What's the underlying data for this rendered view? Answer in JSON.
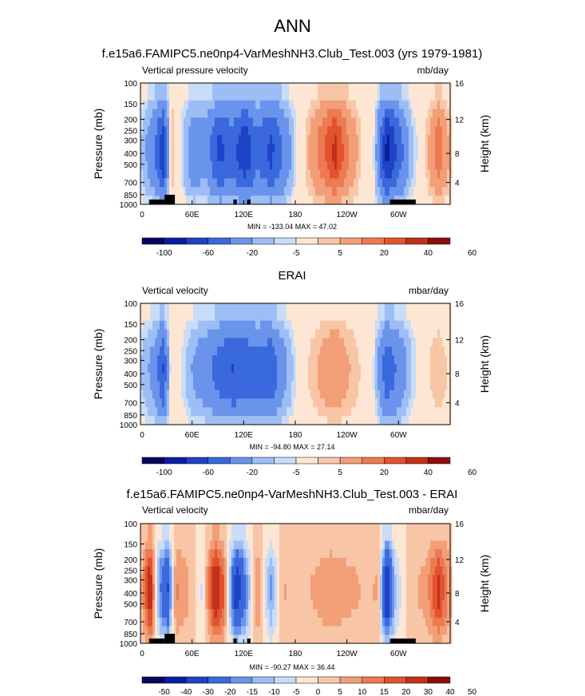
{
  "page": {
    "title": "ANN"
  },
  "colors": {
    "palette": [
      "#08055e",
      "#0a1fa0",
      "#1f43c7",
      "#3a68dd",
      "#6a94ec",
      "#9dbef4",
      "#c9dcf8",
      "#fde6d3",
      "#f8c6a6",
      "#f29f78",
      "#ec7a52",
      "#e2532d",
      "#c1311a",
      "#8a1009"
    ],
    "land": "#000000"
  },
  "chart_data": [
    {
      "type": "heatmap",
      "title": "f.e15a6.FAMIPC5.ne0np4-VarMeshNH3.Club_Test.003 (yrs 1979-1981)",
      "left_label": "Vertical pressure velocity",
      "right_label": "mb/day",
      "ylabel": "Pressure (mb)",
      "ylabel_right": "Height (km)",
      "x_ticks": [
        "0",
        "60E",
        "120E",
        "180",
        "120W",
        "60W"
      ],
      "y_ticks": [
        "100",
        "150",
        "200",
        "250",
        "300",
        "400",
        "500",
        "700",
        "850",
        "1000"
      ],
      "y_ticks_right": [
        "16",
        "12",
        "8",
        "4"
      ],
      "minmax": "MIN = -133.04  MAX =  47.02",
      "colorbar_labels": [
        "-100",
        "-60",
        "-20",
        "-5",
        "5",
        "20",
        "40",
        "60"
      ],
      "field": [
        {
          "lon": 0,
          "val": -10
        },
        {
          "lon": 15,
          "val": -35
        },
        {
          "lon": 25,
          "val": -70
        },
        {
          "lon": 35,
          "val": 10
        },
        {
          "lon": 45,
          "val": -5
        },
        {
          "lon": 60,
          "val": -30
        },
        {
          "lon": 75,
          "val": -25
        },
        {
          "lon": 90,
          "val": -60
        },
        {
          "lon": 105,
          "val": -45
        },
        {
          "lon": 120,
          "val": -70
        },
        {
          "lon": 135,
          "val": -40
        },
        {
          "lon": 150,
          "val": -60
        },
        {
          "lon": 165,
          "val": -35
        },
        {
          "lon": 180,
          "val": -5
        },
        {
          "lon": 195,
          "val": 10
        },
        {
          "lon": 210,
          "val": 25
        },
        {
          "lon": 225,
          "val": 40
        },
        {
          "lon": 240,
          "val": 20
        },
        {
          "lon": 255,
          "val": 5
        },
        {
          "lon": 270,
          "val": -5
        },
        {
          "lon": 285,
          "val": -80
        },
        {
          "lon": 300,
          "val": -45
        },
        {
          "lon": 315,
          "val": -10
        },
        {
          "lon": 330,
          "val": 5
        },
        {
          "lon": 345,
          "val": 25
        },
        {
          "lon": 360,
          "val": 5
        }
      ]
    },
    {
      "type": "heatmap",
      "title": "ERAI",
      "left_label": "Vertical velocity",
      "right_label": "mbar/day",
      "ylabel": "Pressure (mb)",
      "ylabel_right": "Height (km)",
      "x_ticks": [
        "0",
        "60E",
        "120E",
        "180",
        "120W",
        "60W"
      ],
      "y_ticks": [
        "100",
        "150",
        "200",
        "250",
        "300",
        "400",
        "500",
        "700",
        "850",
        "1000"
      ],
      "y_ticks_right": [
        "16",
        "12",
        "8",
        "4"
      ],
      "minmax": "MIN = -94.80  MAX =  27.14",
      "colorbar_labels": [
        "-100",
        "-60",
        "-20",
        "-5",
        "5",
        "20",
        "40",
        "60"
      ],
      "field": [
        {
          "lon": 0,
          "val": -10
        },
        {
          "lon": 15,
          "val": -25
        },
        {
          "lon": 25,
          "val": -55
        },
        {
          "lon": 35,
          "val": 5
        },
        {
          "lon": 45,
          "val": -3
        },
        {
          "lon": 60,
          "val": -20
        },
        {
          "lon": 75,
          "val": -30
        },
        {
          "lon": 90,
          "val": -45
        },
        {
          "lon": 105,
          "val": -55
        },
        {
          "lon": 120,
          "val": -50
        },
        {
          "lon": 135,
          "val": -45
        },
        {
          "lon": 150,
          "val": -50
        },
        {
          "lon": 165,
          "val": -25
        },
        {
          "lon": 180,
          "val": -3
        },
        {
          "lon": 195,
          "val": 5
        },
        {
          "lon": 210,
          "val": 12
        },
        {
          "lon": 225,
          "val": 18
        },
        {
          "lon": 240,
          "val": 10
        },
        {
          "lon": 255,
          "val": 4
        },
        {
          "lon": 270,
          "val": -5
        },
        {
          "lon": 285,
          "val": -50
        },
        {
          "lon": 300,
          "val": -30
        },
        {
          "lon": 315,
          "val": -8
        },
        {
          "lon": 330,
          "val": 3
        },
        {
          "lon": 345,
          "val": 8
        },
        {
          "lon": 360,
          "val": 3
        }
      ]
    },
    {
      "type": "heatmap",
      "title": "f.e15a6.FAMIPC5.ne0np4-VarMeshNH3.Club_Test.003 - ERAI",
      "left_label": "Vertical velocity",
      "right_label": "mbar/day",
      "ylabel": "Pressure (mb)",
      "ylabel_right": "Height (km)",
      "x_ticks": [
        "0",
        "60E",
        "120E",
        "180",
        "120W",
        "60W"
      ],
      "y_ticks": [
        "100",
        "150",
        "200",
        "250",
        "300",
        "400",
        "500",
        "700",
        "850",
        "1000"
      ],
      "y_ticks_right": [
        "16",
        "12",
        "8",
        "4"
      ],
      "minmax": "MIN = -90.27  MAX =  36.44",
      "colorbar_labels": [
        "-50",
        "-40",
        "-30",
        "-20",
        "-15",
        "-10",
        "-5",
        "0",
        "5",
        "10",
        "15",
        "20",
        "30",
        "40",
        "50"
      ],
      "field": [
        {
          "lon": 0,
          "val": 5
        },
        {
          "lon": 10,
          "val": 25
        },
        {
          "lon": 20,
          "val": -15
        },
        {
          "lon": 30,
          "val": -30
        },
        {
          "lon": 40,
          "val": 10
        },
        {
          "lon": 55,
          "val": 5
        },
        {
          "lon": 70,
          "val": -5
        },
        {
          "lon": 85,
          "val": 25
        },
        {
          "lon": 95,
          "val": 15
        },
        {
          "lon": 110,
          "val": -35
        },
        {
          "lon": 120,
          "val": -20
        },
        {
          "lon": 135,
          "val": 10
        },
        {
          "lon": 150,
          "val": -15
        },
        {
          "lon": 165,
          "val": 5
        },
        {
          "lon": 180,
          "val": 3
        },
        {
          "lon": 200,
          "val": 5
        },
        {
          "lon": 220,
          "val": 8
        },
        {
          "lon": 240,
          "val": 6
        },
        {
          "lon": 260,
          "val": 4
        },
        {
          "lon": 275,
          "val": 5
        },
        {
          "lon": 285,
          "val": -40
        },
        {
          "lon": 295,
          "val": -10
        },
        {
          "lon": 310,
          "val": 3
        },
        {
          "lon": 330,
          "val": 6
        },
        {
          "lon": 345,
          "val": 20
        },
        {
          "lon": 360,
          "val": 5
        }
      ]
    }
  ]
}
